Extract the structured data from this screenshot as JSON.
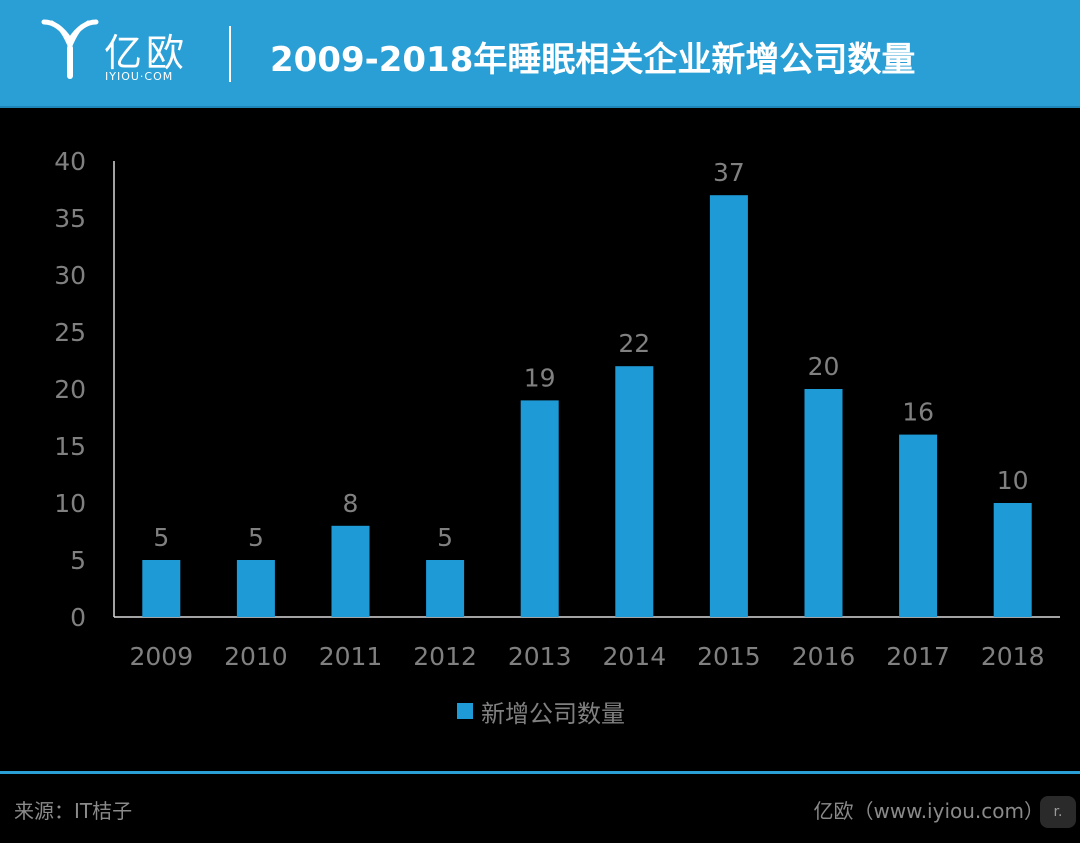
{
  "header": {
    "logo_cn": "亿欧",
    "logo_en": "IYIOU·COM",
    "title": "2009-2018年睡眠相关企业新增公司数量"
  },
  "footer": {
    "source": "来源：IT桔子",
    "credit": "亿欧（www.iyiou.com）"
  },
  "colors": {
    "header_bg": "#2a9fd6",
    "bar": "#1e9bd7",
    "background": "#000000",
    "text_muted": "#808080"
  },
  "chart_data": {
    "type": "bar",
    "categories": [
      "2009",
      "2010",
      "2011",
      "2012",
      "2013",
      "2014",
      "2015",
      "2016",
      "2017",
      "2018"
    ],
    "series": [
      {
        "name": "新增公司数量",
        "values": [
          5,
          5,
          8,
          5,
          19,
          22,
          37,
          20,
          16,
          10
        ]
      }
    ],
    "yticks": [
      0,
      5,
      10,
      15,
      20,
      25,
      30,
      35,
      40
    ],
    "ylim": [
      0,
      40
    ],
    "data_labels": true,
    "grid": false,
    "legend_position": "bottom-center"
  }
}
